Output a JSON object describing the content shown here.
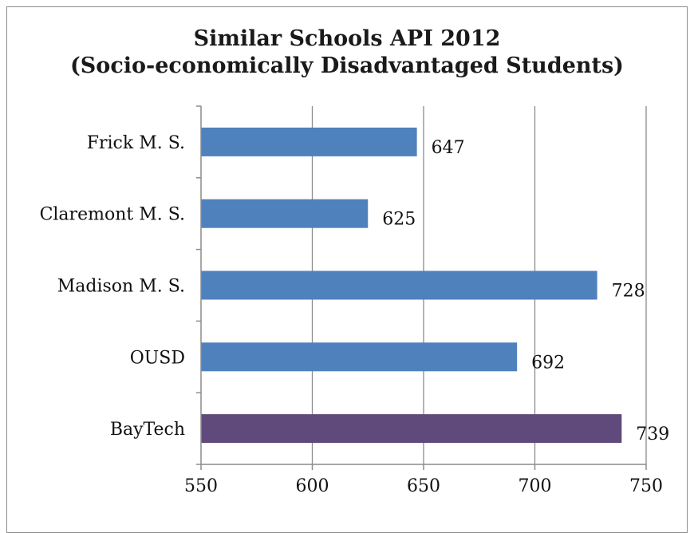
{
  "chart_data": {
    "type": "bar",
    "orientation": "horizontal",
    "title_line1": "Similar Schools API 2012",
    "title_line2": "(Socio-economically Disadvantaged Students)",
    "categories": [
      "Frick M. S.",
      "Claremont M. S.",
      "Madison M. S.",
      "OUSD",
      "BayTech"
    ],
    "values": [
      647,
      625,
      728,
      692,
      739
    ],
    "data_labels": [
      "647",
      "625",
      "728",
      "692",
      "739"
    ],
    "bar_colors": [
      "#4f81bd",
      "#4f81bd",
      "#4f81bd",
      "#4f81bd",
      "#604a7b"
    ],
    "xlim": [
      550,
      750
    ],
    "xticks": [
      550,
      600,
      650,
      700,
      750
    ],
    "xtick_labels": [
      "550",
      "600",
      "650",
      "700",
      "750"
    ],
    "grid": "vertical",
    "legend": "none"
  },
  "colors": {
    "gridline": "#8c8c8c",
    "axis": "#8c8c8c",
    "frame": "#8c8c8c"
  }
}
